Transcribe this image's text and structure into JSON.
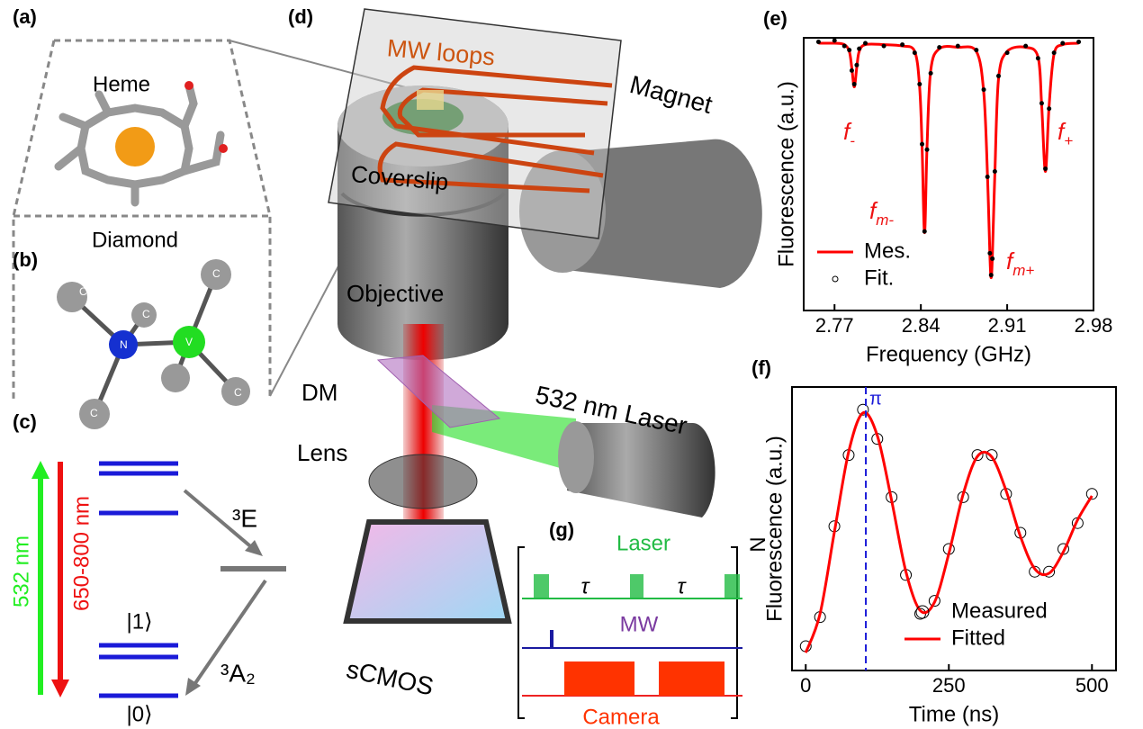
{
  "chart_data": [
    {
      "type": "line",
      "label": "(e)",
      "x_label": "Frequency (GHz)",
      "y_label": "Fluorescence (a.u.)",
      "x": [
        2.757,
        2.77,
        2.778,
        2.782,
        2.784,
        2.786,
        2.788,
        2.79,
        2.795,
        2.81,
        2.825,
        2.835,
        2.839,
        2.841,
        2.843,
        2.845,
        2.848,
        2.855,
        2.87,
        2.885,
        2.891,
        2.894,
        2.896,
        2.897,
        2.898,
        2.9,
        2.903,
        2.91,
        2.925,
        2.935,
        2.938,
        2.941,
        2.944,
        2.948,
        2.955,
        2.968
      ],
      "xlim": [
        2.745,
        2.98
      ],
      "xticks": [
        2.77,
        2.84,
        2.91,
        2.98
      ],
      "ylim": [
        0,
        1
      ],
      "legend": "lower left",
      "series": [
        {
          "name": "Mes.",
          "color": "#ff0000",
          "mark": "line",
          "values": [
            0.98,
            0.98,
            0.975,
            0.95,
            0.89,
            0.82,
            0.89,
            0.95,
            0.975,
            0.975,
            0.97,
            0.95,
            0.82,
            0.6,
            0.285,
            0.6,
            0.88,
            0.96,
            0.965,
            0.95,
            0.8,
            0.5,
            0.2,
            0.12,
            0.2,
            0.5,
            0.85,
            0.95,
            0.965,
            0.93,
            0.75,
            0.51,
            0.75,
            0.94,
            0.975,
            0.98
          ]
        },
        {
          "name": "Fit.",
          "color": "#000000",
          "mark": "circle",
          "values": [
            0.985,
            0.99,
            0.97,
            0.955,
            0.88,
            0.83,
            0.9,
            0.96,
            0.98,
            0.97,
            0.975,
            0.945,
            0.83,
            0.61,
            0.29,
            0.59,
            0.87,
            0.965,
            0.97,
            0.955,
            0.81,
            0.49,
            0.21,
            0.13,
            0.19,
            0.51,
            0.86,
            0.945,
            0.97,
            0.925,
            0.76,
            0.52,
            0.74,
            0.945,
            0.98,
            0.985
          ]
        }
      ],
      "annotations": [
        {
          "text": "f",
          "sub": "-"
        },
        {
          "text": "f",
          "sub": "m-"
        },
        {
          "text": "f",
          "sub": "m+"
        },
        {
          "text": "f",
          "sub": "+"
        }
      ]
    },
    {
      "type": "line",
      "label": "(f)",
      "x_label": "Time (ns)",
      "y_label": "Fluorescence (a.u.)",
      "x": [
        0,
        25,
        50,
        75,
        100,
        125,
        150,
        175,
        200,
        225,
        250,
        275,
        300,
        325,
        350,
        375,
        400,
        425,
        450,
        475,
        500
      ],
      "xlim": [
        -24,
        542
      ],
      "xticks": [
        0,
        250,
        500
      ],
      "ylim": [
        0.125,
        1
      ],
      "legend": "lower right",
      "series": [
        {
          "name": "Measured",
          "color": "#000000",
          "mark": "circle",
          "values": [
            0.2,
            0.29,
            0.57,
            0.79,
            0.93,
            0.84,
            0.66,
            0.42,
            0.3,
            0.34,
            0.5,
            0.66,
            0.79,
            0.79,
            0.67,
            0.55,
            0.43,
            0.43,
            0.5,
            0.58,
            0.67
          ]
        },
        {
          "name": "Fitted",
          "color": "#ff0000",
          "mark": "line",
          "values": [
            0.18,
            0.3,
            0.552,
            0.8,
            0.92,
            0.85,
            0.65,
            0.43,
            0.31,
            0.336,
            0.486,
            0.669,
            0.786,
            0.784,
            0.68,
            0.539,
            0.439,
            0.425,
            0.491,
            0.59,
            0.664
          ]
        }
      ],
      "marker": {
        "x": 105,
        "label": "π"
      }
    }
  ],
  "panels": {
    "a": {
      "label": "(a)",
      "title": "Heme"
    },
    "b": {
      "label": "(b)",
      "title": "Diamond",
      "atoms": [
        "C",
        "C",
        "N",
        "V",
        "C",
        "C",
        "C"
      ]
    },
    "c": {
      "label": "(c)",
      "pump": "532 nm",
      "emission": "650-800 nm",
      "excited": "³E",
      "ground": "³A₂",
      "ket1": "|1⟩",
      "ket0": "|0⟩"
    },
    "d": {
      "label": "(d)",
      "mw": "MW loops",
      "magnet": "Magnet",
      "coverslip": "Coverslip",
      "objective": "Objective",
      "dm": "DM",
      "lens": "Lens",
      "laser": "532 nm Laser",
      "camera": "sCMOS"
    },
    "g": {
      "label": "(g)",
      "laser": "Laser",
      "mw": "MW",
      "camera": "Camera",
      "tau": "τ",
      "repeat": "N"
    }
  }
}
